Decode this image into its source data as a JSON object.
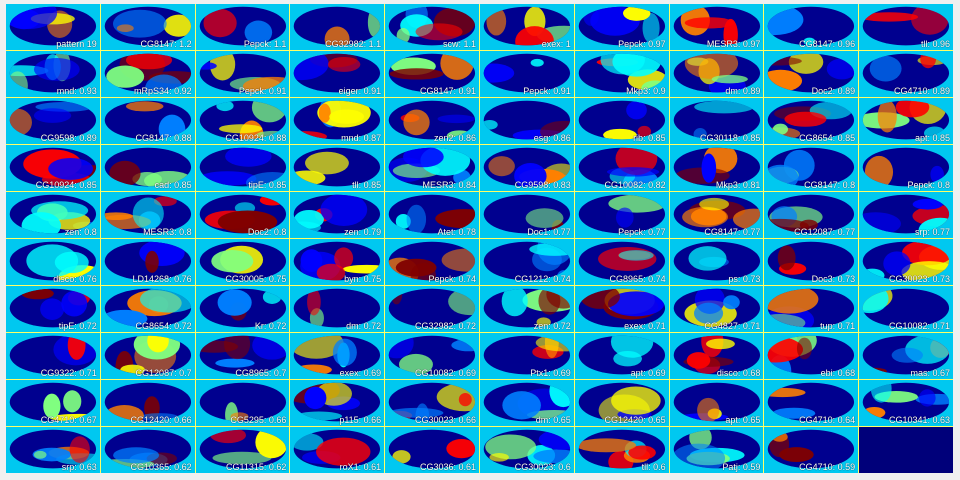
{
  "colors": {
    "tile_background": "#00c8f0",
    "grid_lines": "#ffff66",
    "label_text": "#ffffff",
    "empty_tile": "#00007a",
    "colormap": [
      "#00008f",
      "#0000ff",
      "#0080ff",
      "#00ffff",
      "#80ff80",
      "#ffff00",
      "#ff8000",
      "#ff0000",
      "#800000"
    ]
  },
  "panels": [
    {
      "label": "pattern 19"
    },
    {
      "label": "CG8147: 1.2"
    },
    {
      "label": "Pepck: 1.1"
    },
    {
      "label": "CG32982: 1.1"
    },
    {
      "label": "scw: 1.1"
    },
    {
      "label": "exex: 1"
    },
    {
      "label": "Pepck: 0.97"
    },
    {
      "label": "MESR3: 0.97"
    },
    {
      "label": "CG8147: 0.96"
    },
    {
      "label": "tll: 0.96"
    },
    {
      "label": "mnd: 0.93"
    },
    {
      "label": "mRpS34: 0.92"
    },
    {
      "label": "Pepck: 0.91"
    },
    {
      "label": "eiger: 0.91"
    },
    {
      "label": "CG8147: 0.91"
    },
    {
      "label": "Pepck: 0.91"
    },
    {
      "label": "Mkp3: 0.9"
    },
    {
      "label": "dm: 0.89"
    },
    {
      "label": "Doc2: 0.89"
    },
    {
      "label": "CG4710: 0.89"
    },
    {
      "label": "CG9598: 0.89"
    },
    {
      "label": "CG8147: 0.88"
    },
    {
      "label": "CG10924: 0.88"
    },
    {
      "label": "mnd: 0.87"
    },
    {
      "label": "zen2: 0.86"
    },
    {
      "label": "esg: 0.86"
    },
    {
      "label": "rib: 0.85"
    },
    {
      "label": "CG30118: 0.85"
    },
    {
      "label": "CG8654: 0.85"
    },
    {
      "label": "apt: 0.85"
    },
    {
      "label": "CG10924: 0.85"
    },
    {
      "label": "cad: 0.85"
    },
    {
      "label": "tipE: 0.85"
    },
    {
      "label": "tll: 0.85"
    },
    {
      "label": "MESR3: 0.84"
    },
    {
      "label": "CG9598: 0.83"
    },
    {
      "label": "CG10082: 0.82"
    },
    {
      "label": "Mkp3: 0.81"
    },
    {
      "label": "CG8147: 0.8"
    },
    {
      "label": "Pepck: 0.8"
    },
    {
      "label": "zen: 0.8"
    },
    {
      "label": "MESR3: 0.8"
    },
    {
      "label": "Doc2: 0.8"
    },
    {
      "label": "zen: 0.79"
    },
    {
      "label": "Atet: 0.78"
    },
    {
      "label": "Doc1: 0.77"
    },
    {
      "label": "Pepck: 0.77"
    },
    {
      "label": "CG8147: 0.77"
    },
    {
      "label": "CG12087: 0.77"
    },
    {
      "label": "srp: 0.77"
    },
    {
      "label": "disco: 0.76"
    },
    {
      "label": "LD14268: 0.76"
    },
    {
      "label": "CG30005: 0.75"
    },
    {
      "label": "byn: 0.75"
    },
    {
      "label": "Pepck: 0.74"
    },
    {
      "label": "CG1212: 0.74"
    },
    {
      "label": "CG8965: 0.74"
    },
    {
      "label": "ps: 0.73"
    },
    {
      "label": "Doc3: 0.73"
    },
    {
      "label": "CG30023: 0.73"
    },
    {
      "label": "tipE: 0.72"
    },
    {
      "label": "CG8654: 0.72"
    },
    {
      "label": "Kr: 0.72"
    },
    {
      "label": "dm: 0.72"
    },
    {
      "label": "CG32982: 0.72"
    },
    {
      "label": "zen: 0.72"
    },
    {
      "label": "exex: 0.71"
    },
    {
      "label": "CG4827: 0.71"
    },
    {
      "label": "tup: 0.71"
    },
    {
      "label": "CG10082: 0.71"
    },
    {
      "label": "CG9322: 0.71"
    },
    {
      "label": "CG12087: 0.7"
    },
    {
      "label": "CG8965: 0.7"
    },
    {
      "label": "exex: 0.69"
    },
    {
      "label": "CG10082: 0.69"
    },
    {
      "label": "Ptx1: 0.69"
    },
    {
      "label": "apt: 0.69"
    },
    {
      "label": "disco: 0.68"
    },
    {
      "label": "ebi: 0.68"
    },
    {
      "label": "mas: 0.67"
    },
    {
      "label": "CG4710: 0.67"
    },
    {
      "label": "CG12420: 0.66"
    },
    {
      "label": "CG5295: 0.66"
    },
    {
      "label": "p115: 0.66"
    },
    {
      "label": "CG30023: 0.66"
    },
    {
      "label": "dm: 0.65"
    },
    {
      "label": "CG12420: 0.65"
    },
    {
      "label": "apt: 0.65"
    },
    {
      "label": "CG4710: 0.64"
    },
    {
      "label": "CG10341: 0.63"
    },
    {
      "label": "srp: 0.63"
    },
    {
      "label": "CG10365: 0.62"
    },
    {
      "label": "CG11315: 0.62"
    },
    {
      "label": "roX1: 0.61"
    },
    {
      "label": "CG3036: 0.61"
    },
    {
      "label": "CG30023: 0.6"
    },
    {
      "label": "tll: 0.6"
    },
    {
      "label": "Patj: 0.59"
    },
    {
      "label": "CG4710: 0.59"
    },
    {
      "label": "",
      "empty": true
    }
  ]
}
